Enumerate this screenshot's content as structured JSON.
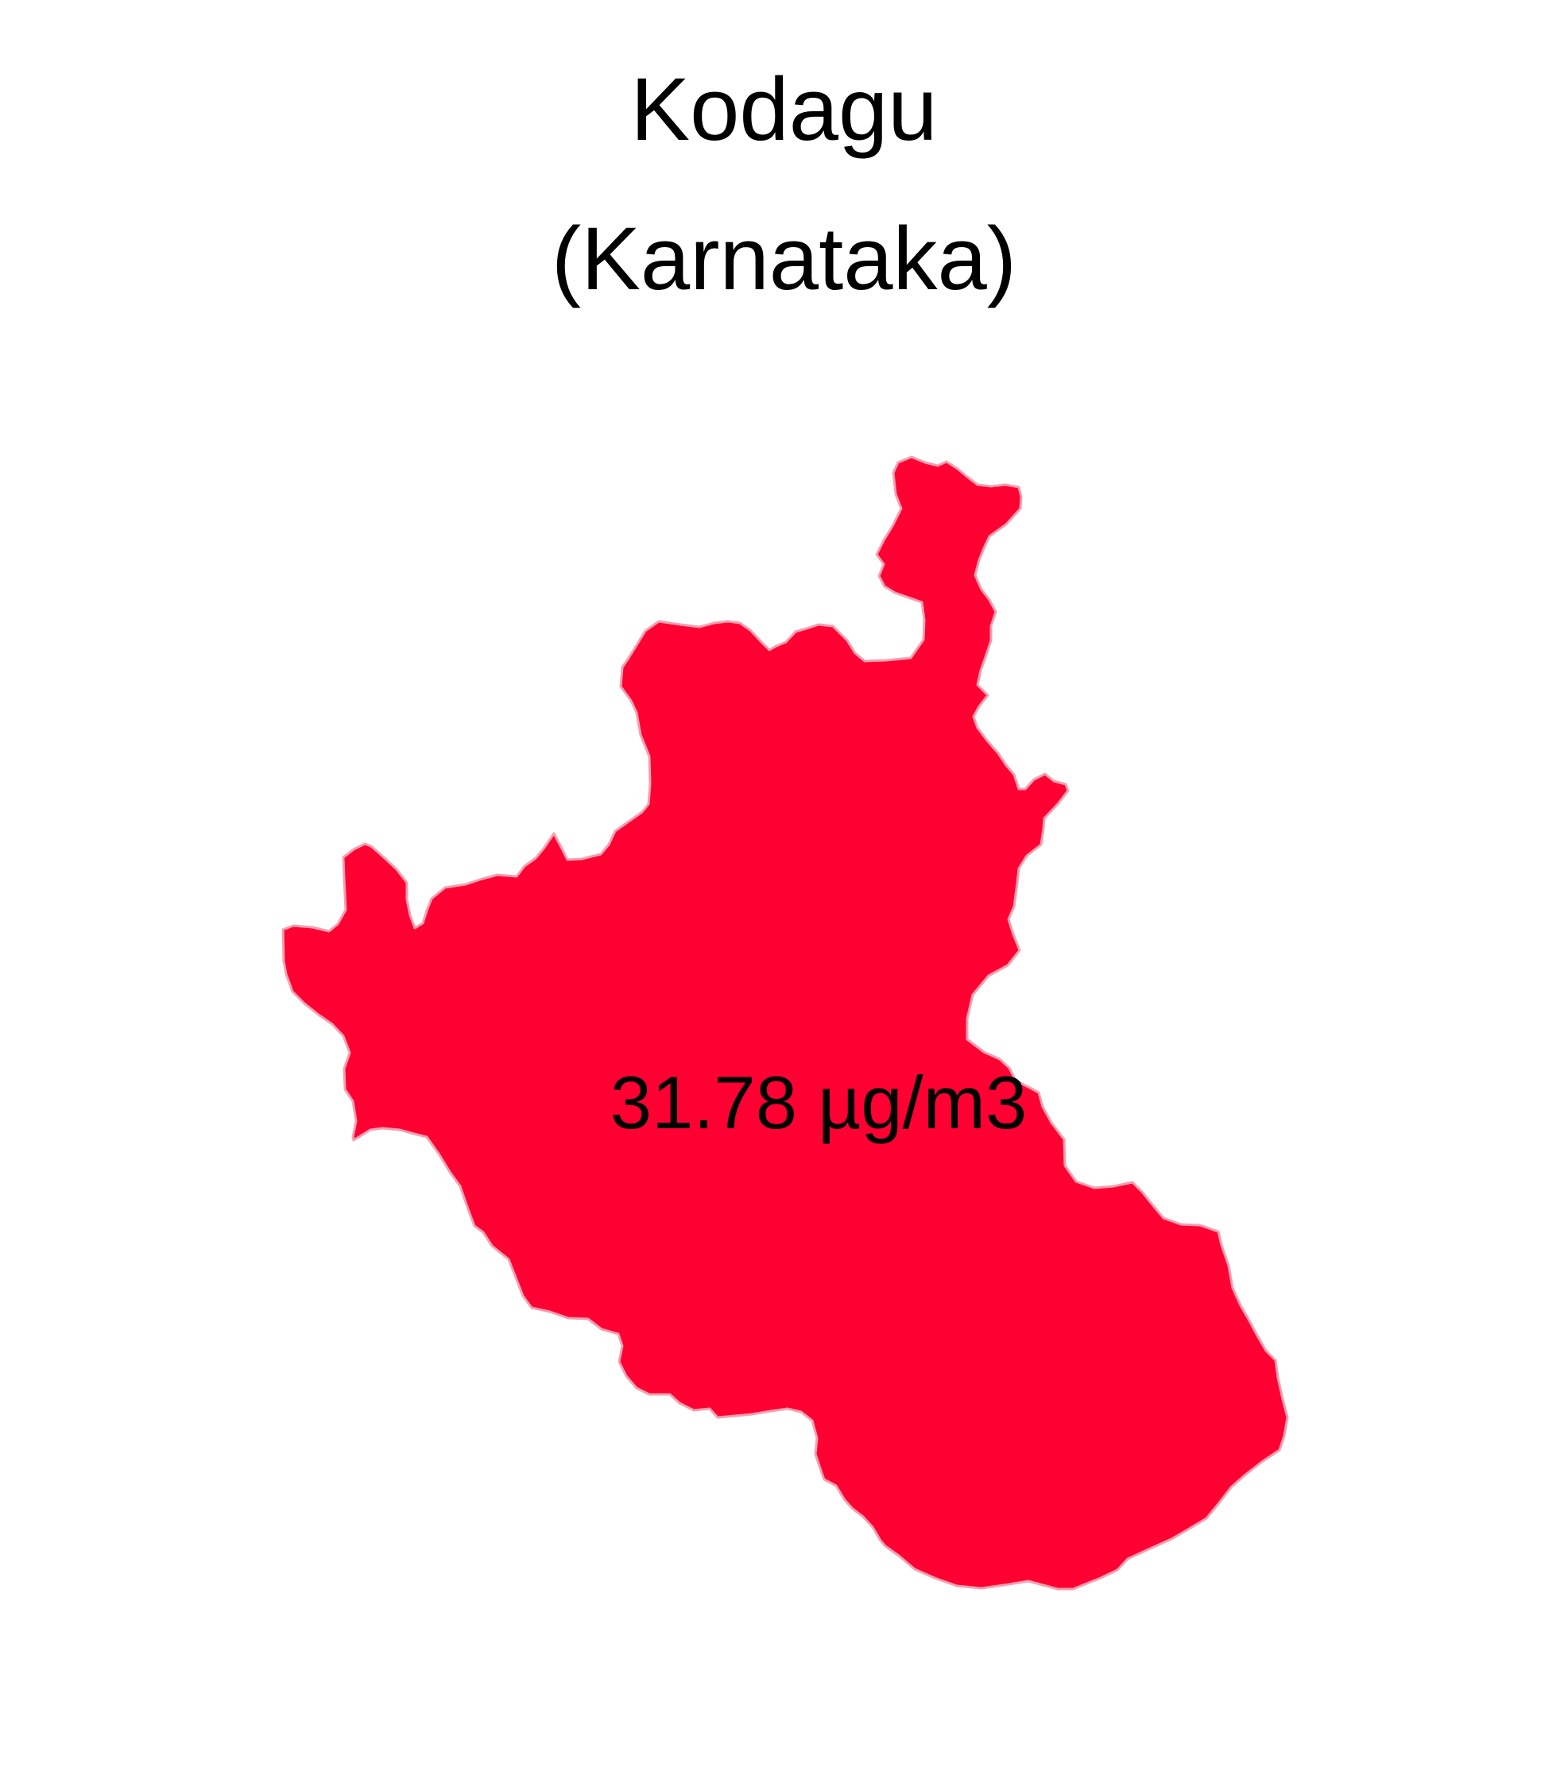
{
  "title": {
    "line1": "Kodagu",
    "line2": "(Karnataka)"
  },
  "region": {
    "name": "Kodagu",
    "state": "Karnataka",
    "value_label": "31.78 µg/m3",
    "fill_color": "#ff0033",
    "border_color": "#f2a0b0"
  }
}
